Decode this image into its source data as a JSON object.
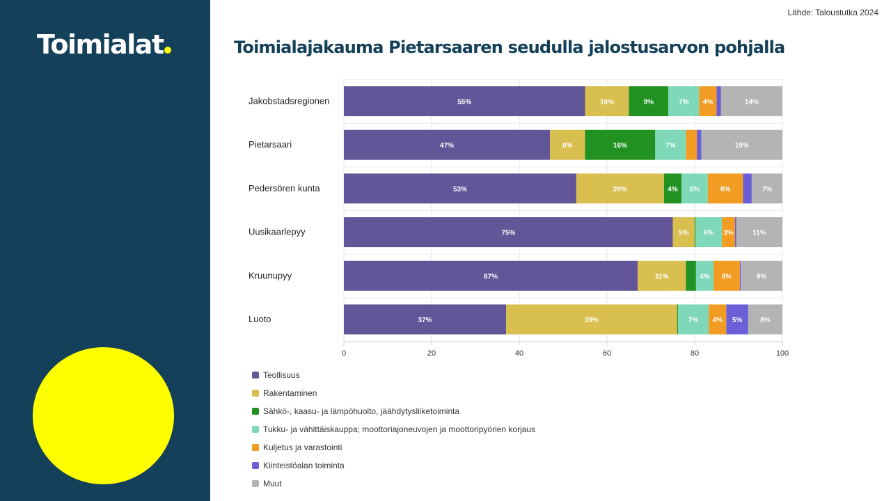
{
  "slide": {
    "brand": "Toimialat",
    "source": "Lähde: Taloustutka 2024",
    "title": "Toimialajakauma  Pietarsaaren  seudulla jalostusarvon pohjalla"
  },
  "chart_data": {
    "type": "bar",
    "orientation": "horizontal",
    "stacked": true,
    "categories": [
      "Jakobstadsregionen",
      "Pietarsaari",
      "Pedersören kunta",
      "Uusikaarlepyy",
      "Kruunupyy",
      "Luoto"
    ],
    "series": [
      {
        "name": "Teollisuus",
        "color": "#625698",
        "values": [
          55,
          47,
          53,
          75,
          67,
          37
        ],
        "labels": [
          "55%",
          "47%",
          "53%",
          "75%",
          "67%",
          "37%"
        ]
      },
      {
        "name": "Rakentaminen",
        "color": "#d9bf4f",
        "values": [
          10,
          8,
          20,
          5,
          11,
          39
        ],
        "labels": [
          "10%",
          "8%",
          "20%",
          "5%",
          "11%",
          "39%"
        ]
      },
      {
        "name": "Sähkö-, kaasu- ja lämpöhuolto, jäähdytysliiketoiminta",
        "color": "#219222",
        "values": [
          9,
          16,
          4,
          0.2,
          2.3,
          0.2
        ],
        "labels": [
          "9%",
          "16%",
          "4%",
          "",
          "",
          ""
        ]
      },
      {
        "name": "Tukku- ja vähittäiskauppa; moottoriajoneuvojen ja moottoripyörien korjaus",
        "color": "#7fd8b8",
        "values": [
          7,
          7,
          6,
          6,
          4,
          7
        ],
        "labels": [
          "7%",
          "7%",
          "6%",
          "6%",
          "4%",
          "7%"
        ]
      },
      {
        "name": "Kuljetus ja varastointi",
        "color": "#f39c23",
        "values": [
          4,
          2.5,
          8,
          3,
          6,
          4
        ],
        "labels": [
          "4%",
          "",
          "8%",
          "3%",
          "6%",
          "4%"
        ]
      },
      {
        "name": "Kiinteistöalan toiminta",
        "color": "#6a5fd6",
        "values": [
          1,
          1,
          2,
          0.3,
          0.2,
          5
        ],
        "labels": [
          "",
          "",
          "",
          "",
          "",
          "5%"
        ]
      },
      {
        "name": "Muut",
        "color": "#b4b4b4",
        "values": [
          14,
          19,
          7,
          11,
          9,
          8
        ],
        "labels": [
          "14%",
          "19%",
          "7%",
          "11%",
          "9%",
          "8%"
        ]
      }
    ],
    "xlim": [
      0,
      100
    ],
    "xticks": [
      0,
      20,
      40,
      60,
      80,
      100
    ],
    "grid": true,
    "legend": "bottom"
  }
}
